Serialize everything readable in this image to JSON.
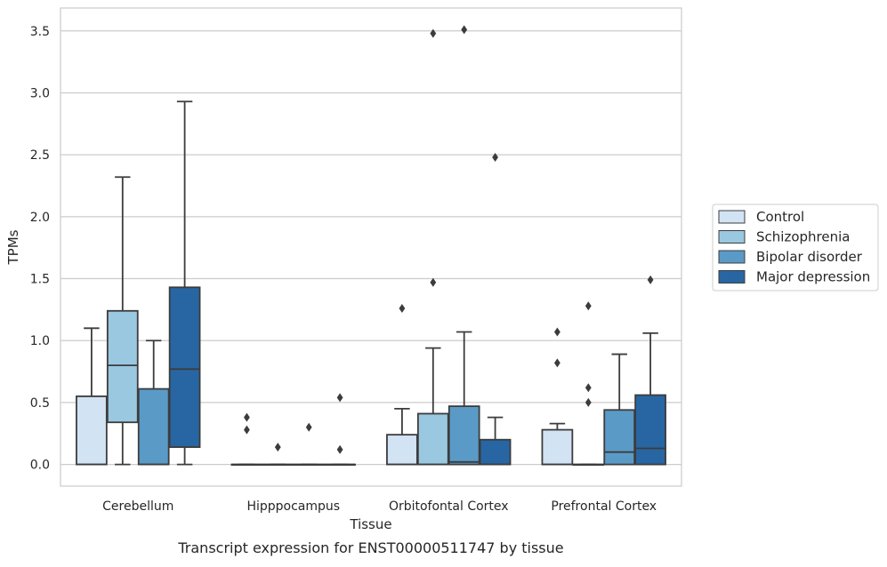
{
  "chart_data": {
    "type": "boxplot",
    "caption": "Transcript expression for ENST00000511747 by tissue",
    "xlabel": "Tissue",
    "ylabel": "TPMs",
    "ylim": [
      -0.175,
      3.685
    ],
    "yticks": [
      "0.0",
      "0.5",
      "1.0",
      "1.5",
      "2.0",
      "2.5",
      "3.0",
      "3.5"
    ],
    "grid": true,
    "legend_position": "right",
    "categories": [
      "Cerebellum",
      "Hipppocampus",
      "Orbitofontal Cortex",
      "Prefrontal Cortex"
    ],
    "series": [
      {
        "name": "Control",
        "color": "#d2e3f3",
        "boxes": [
          {
            "q1": 0.0,
            "median": 0.0,
            "q3": 0.55,
            "whisker_low": 0.0,
            "whisker_high": 1.1,
            "outliers": []
          },
          {
            "q1": 0.0,
            "median": 0.0,
            "q3": 0.0,
            "whisker_low": 0.0,
            "whisker_high": 0.0,
            "outliers": [
              0.38,
              0.28
            ]
          },
          {
            "q1": 0.0,
            "median": 0.0,
            "q3": 0.24,
            "whisker_low": 0.0,
            "whisker_high": 0.45,
            "outliers": [
              1.26
            ]
          },
          {
            "q1": 0.0,
            "median": 0.0,
            "q3": 0.28,
            "whisker_low": 0.0,
            "whisker_high": 0.33,
            "outliers": [
              1.07,
              0.82
            ]
          }
        ]
      },
      {
        "name": "Schizophrenia",
        "color": "#9ac8e0",
        "boxes": [
          {
            "q1": 0.34,
            "median": 0.8,
            "q3": 1.24,
            "whisker_low": 0.0,
            "whisker_high": 2.32,
            "outliers": []
          },
          {
            "q1": 0.0,
            "median": 0.0,
            "q3": 0.0,
            "whisker_low": 0.0,
            "whisker_high": 0.0,
            "outliers": [
              0.14
            ]
          },
          {
            "q1": 0.0,
            "median": 0.0,
            "q3": 0.41,
            "whisker_low": 0.0,
            "whisker_high": 0.94,
            "outliers": [
              3.48,
              1.47
            ]
          },
          {
            "q1": 0.0,
            "median": 0.0,
            "q3": 0.0,
            "whisker_low": 0.0,
            "whisker_high": 0.0,
            "outliers": [
              1.28,
              0.62,
              0.5
            ]
          }
        ]
      },
      {
        "name": "Bipolar disorder",
        "color": "#5a9ac7",
        "boxes": [
          {
            "q1": 0.0,
            "median": 0.0,
            "q3": 0.61,
            "whisker_low": 0.0,
            "whisker_high": 1.0,
            "outliers": []
          },
          {
            "q1": 0.0,
            "median": 0.0,
            "q3": 0.0,
            "whisker_low": 0.0,
            "whisker_high": 0.0,
            "outliers": [
              0.3
            ]
          },
          {
            "q1": 0.0,
            "median": 0.02,
            "q3": 0.47,
            "whisker_low": 0.0,
            "whisker_high": 1.07,
            "outliers": [
              3.51
            ]
          },
          {
            "q1": 0.0,
            "median": 0.1,
            "q3": 0.44,
            "whisker_low": 0.0,
            "whisker_high": 0.89,
            "outliers": []
          }
        ]
      },
      {
        "name": "Major depression",
        "color": "#2866a3",
        "boxes": [
          {
            "q1": 0.14,
            "median": 0.77,
            "q3": 1.43,
            "whisker_low": 0.0,
            "whisker_high": 2.93,
            "outliers": []
          },
          {
            "q1": 0.0,
            "median": 0.0,
            "q3": 0.0,
            "whisker_low": 0.0,
            "whisker_high": 0.0,
            "outliers": [
              0.54,
              0.12
            ]
          },
          {
            "q1": 0.0,
            "median": 0.0,
            "q3": 0.2,
            "whisker_low": 0.0,
            "whisker_high": 0.38,
            "outliers": [
              2.48
            ]
          },
          {
            "q1": 0.0,
            "median": 0.13,
            "q3": 0.56,
            "whisker_low": 0.0,
            "whisker_high": 1.06,
            "outliers": [
              1.49
            ]
          }
        ]
      }
    ]
  }
}
